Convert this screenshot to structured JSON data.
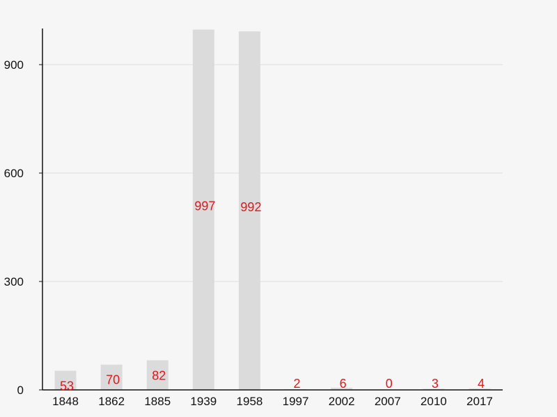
{
  "chart_data": {
    "type": "bar",
    "title": "",
    "xlabel": "",
    "ylabel": "",
    "categories": [
      "1848",
      "1862",
      "1885",
      "1939",
      "1958",
      "1997",
      "2002",
      "2007",
      "2010",
      "2017"
    ],
    "values": [
      53,
      70,
      82,
      997,
      992,
      2,
      6,
      0,
      3,
      4
    ],
    "data_labels": [
      "53",
      "70",
      "82",
      "997",
      "992",
      "2",
      "6",
      "0",
      "3",
      "4"
    ],
    "ylim": [
      0,
      1000
    ],
    "yticks": [
      0,
      300,
      600,
      900
    ],
    "ytick_labels": [
      "0",
      "300",
      "600",
      "900"
    ],
    "grid": true,
    "legend": "none",
    "colors": {
      "bar": "#dcdbdb",
      "data_label": "#e0181b",
      "grid": "#dddddd",
      "axis": "#111111",
      "background": "#f7f6f6"
    }
  }
}
